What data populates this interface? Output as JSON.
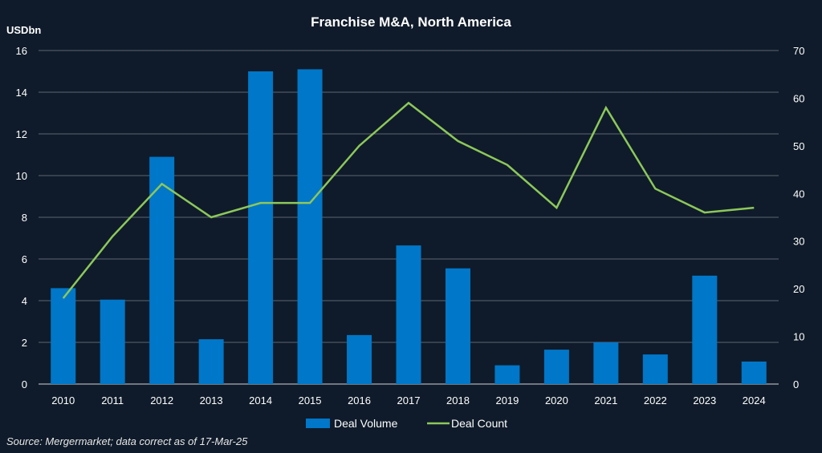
{
  "chart_data": {
    "type": "bar",
    "title": "Franchise M&A, North America",
    "ylabel": "USDbn",
    "ylim": [
      0,
      16
    ],
    "y2lim": [
      0,
      70
    ],
    "yticks": [
      "0",
      "2",
      "4",
      "6",
      "8",
      "10",
      "12",
      "14",
      "16"
    ],
    "y2ticks": [
      "0",
      "10",
      "20",
      "30",
      "40",
      "50",
      "60",
      "70"
    ],
    "grid": true,
    "legend_position": "bottom",
    "categories": [
      "2010",
      "2011",
      "2012",
      "2013",
      "2014",
      "2015",
      "2016",
      "2017",
      "2018",
      "2019",
      "2020",
      "2021",
      "2022",
      "2023",
      "2024"
    ],
    "series": [
      {
        "name": "Deal Volume",
        "type": "bar",
        "axis": "left",
        "color": "#0077c8",
        "values": [
          4.6,
          4.05,
          10.9,
          2.15,
          15.0,
          15.1,
          2.35,
          6.65,
          5.55,
          0.9,
          1.65,
          2.0,
          1.42,
          5.2,
          1.08
        ]
      },
      {
        "name": "Deal Count",
        "type": "line",
        "axis": "right",
        "color": "#8dc85a",
        "values": [
          18,
          31,
          42,
          35,
          38,
          38,
          50,
          59,
          51,
          46,
          37,
          58,
          41,
          36,
          37
        ]
      }
    ],
    "source": "Source: Mergermarket; data correct as of 17-Mar-25"
  }
}
